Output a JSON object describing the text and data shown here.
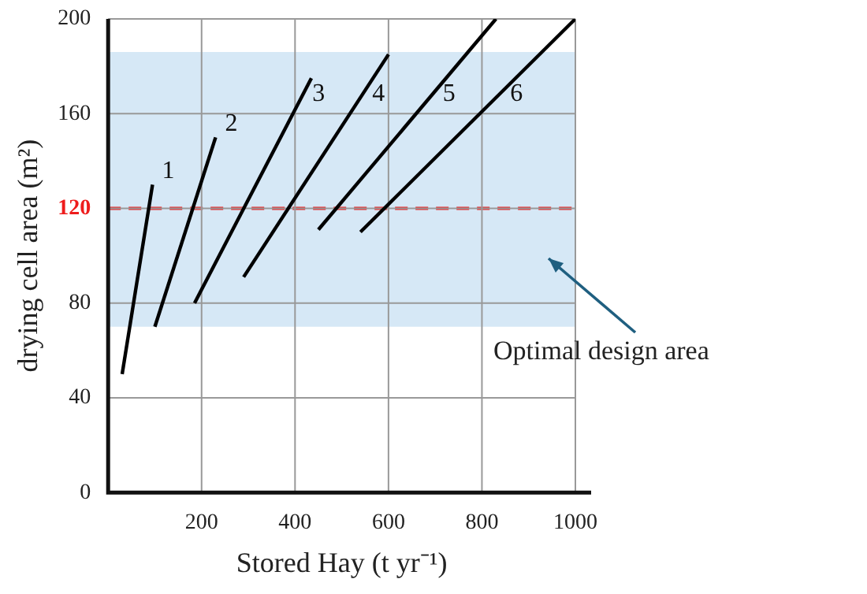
{
  "chart_data": {
    "type": "line",
    "xlabel": "Stored Hay (t yr⁻¹)",
    "ylabel": "drying cell area (m²)",
    "xlim": [
      0,
      1000
    ],
    "xticks": [
      {
        "value": 0,
        "label": null
      },
      200,
      400,
      600,
      800,
      1000
    ],
    "ylim": [
      0,
      200
    ],
    "yticks": [
      0,
      40,
      80,
      120,
      160,
      200
    ],
    "grid": true,
    "legend": false,
    "marker": "none",
    "line_style": "solid",
    "series": [
      {
        "name": "1",
        "color": "#000000",
        "x": [
          30,
          95
        ],
        "values": [
          50,
          130
        ]
      },
      {
        "name": "2",
        "color": "#000000",
        "x": [
          100,
          230
        ],
        "values": [
          70,
          150
        ]
      },
      {
        "name": "3",
        "color": "#000000",
        "x": [
          185,
          435
        ],
        "values": [
          80,
          175
        ]
      },
      {
        "name": "4",
        "color": "#000000",
        "x": [
          290,
          600
        ],
        "values": [
          91,
          185
        ]
      },
      {
        "name": "5",
        "color": "#000000",
        "x": [
          450,
          830
        ],
        "values": [
          111,
          200
        ]
      },
      {
        "name": "6",
        "color": "#000000",
        "x": [
          540,
          1000
        ],
        "values": [
          110,
          200
        ]
      }
    ],
    "ref_lines": [
      {
        "axis": "y",
        "value": 120,
        "label": null,
        "color": "#ee1c1c",
        "line_style": "dashed"
      }
    ],
    "bands": [
      {
        "axis": "y",
        "from": 70,
        "to": 186,
        "label": null,
        "color": "#d6e8f6"
      }
    ],
    "annotations": [
      "Optimal design area"
    ]
  }
}
